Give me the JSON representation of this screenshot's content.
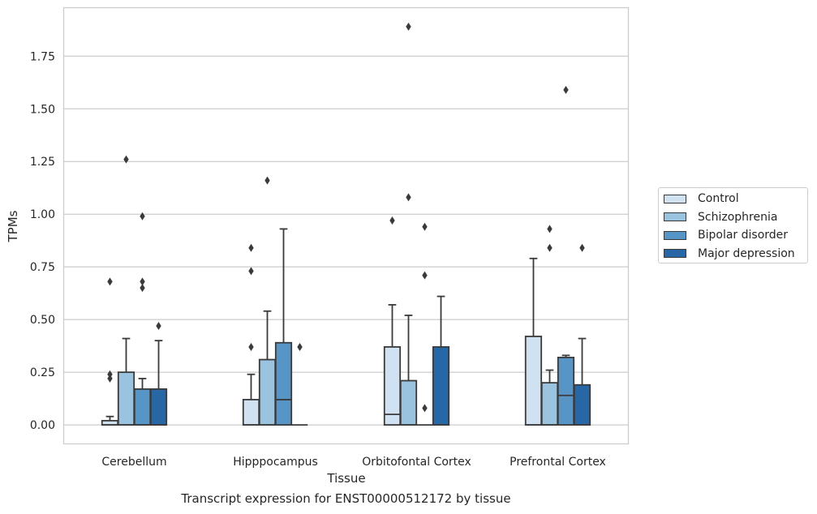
{
  "chart_data": {
    "type": "box",
    "title": "",
    "caption": "Transcript expression for ENST00000512172 by tissue",
    "xlabel": "Tissue",
    "ylabel": "TPMs",
    "ylim": [
      -0.09,
      1.98
    ],
    "yticks": [
      "0.00",
      "0.25",
      "0.50",
      "0.75",
      "1.00",
      "1.25",
      "1.50",
      "1.75"
    ],
    "categories": [
      "Cerebellum",
      "Hipppocampus",
      "Orbitofontal Cortex",
      "Prefrontal Cortex"
    ],
    "grid": "horizontal",
    "legend_position": "right",
    "series": [
      {
        "name": "Control",
        "color": "#d0e1f2",
        "boxes": [
          {
            "q1": 0.0,
            "median": 0.0,
            "q3": 0.02,
            "whisker_low": 0.0,
            "whisker_high": 0.04,
            "outliers": [
              0.68,
              0.24,
              0.22
            ]
          },
          {
            "q1": 0.0,
            "median": 0.0,
            "q3": 0.12,
            "whisker_low": 0.0,
            "whisker_high": 0.24,
            "outliers": [
              0.84,
              0.73,
              0.37
            ]
          },
          {
            "q1": 0.0,
            "median": 0.05,
            "q3": 0.37,
            "whisker_low": 0.0,
            "whisker_high": 0.57,
            "outliers": [
              0.97
            ]
          },
          {
            "q1": 0.0,
            "median": 0.0,
            "q3": 0.42,
            "whisker_low": 0.0,
            "whisker_high": 0.79,
            "outliers": []
          }
        ]
      },
      {
        "name": "Schizophrenia",
        "color": "#9ac3df",
        "boxes": [
          {
            "q1": 0.0,
            "median": 0.0,
            "q3": 0.25,
            "whisker_low": 0.0,
            "whisker_high": 0.41,
            "outliers": [
              1.26
            ]
          },
          {
            "q1": 0.0,
            "median": 0.0,
            "q3": 0.31,
            "whisker_low": 0.0,
            "whisker_high": 0.54,
            "outliers": [
              1.16
            ]
          },
          {
            "q1": 0.0,
            "median": 0.0,
            "q3": 0.21,
            "whisker_low": 0.0,
            "whisker_high": 0.52,
            "outliers": [
              1.89,
              1.08
            ]
          },
          {
            "q1": 0.0,
            "median": 0.0,
            "q3": 0.2,
            "whisker_low": 0.0,
            "whisker_high": 0.26,
            "outliers": [
              0.93,
              0.84
            ]
          }
        ]
      },
      {
        "name": "Bipolar disorder",
        "color": "#5795c6",
        "boxes": [
          {
            "q1": 0.0,
            "median": 0.0,
            "q3": 0.17,
            "whisker_low": 0.0,
            "whisker_high": 0.22,
            "outliers": [
              0.99,
              0.68,
              0.65
            ]
          },
          {
            "q1": 0.0,
            "median": 0.12,
            "q3": 0.39,
            "whisker_low": 0.0,
            "whisker_high": 0.93,
            "outliers": []
          },
          {
            "q1": 0.0,
            "median": 0.0,
            "q3": 0.0,
            "whisker_low": 0.0,
            "whisker_high": 0.0,
            "outliers": [
              0.94,
              0.71,
              0.08
            ]
          },
          {
            "q1": 0.0,
            "median": 0.14,
            "q3": 0.32,
            "whisker_low": 0.0,
            "whisker_high": 0.33,
            "outliers": [
              1.59
            ]
          }
        ]
      },
      {
        "name": "Major depression",
        "color": "#2767a6",
        "boxes": [
          {
            "q1": 0.0,
            "median": 0.0,
            "q3": 0.17,
            "whisker_low": 0.0,
            "whisker_high": 0.4,
            "outliers": [
              0.47
            ]
          },
          {
            "q1": 0.0,
            "median": 0.0,
            "q3": 0.0,
            "whisker_low": 0.0,
            "whisker_high": 0.0,
            "outliers": [
              0.37
            ]
          },
          {
            "q1": 0.0,
            "median": 0.0,
            "q3": 0.37,
            "whisker_low": 0.0,
            "whisker_high": 0.61,
            "outliers": []
          },
          {
            "q1": 0.0,
            "median": 0.0,
            "q3": 0.19,
            "whisker_low": 0.0,
            "whisker_high": 0.41,
            "outliers": [
              0.84
            ]
          }
        ]
      }
    ]
  }
}
